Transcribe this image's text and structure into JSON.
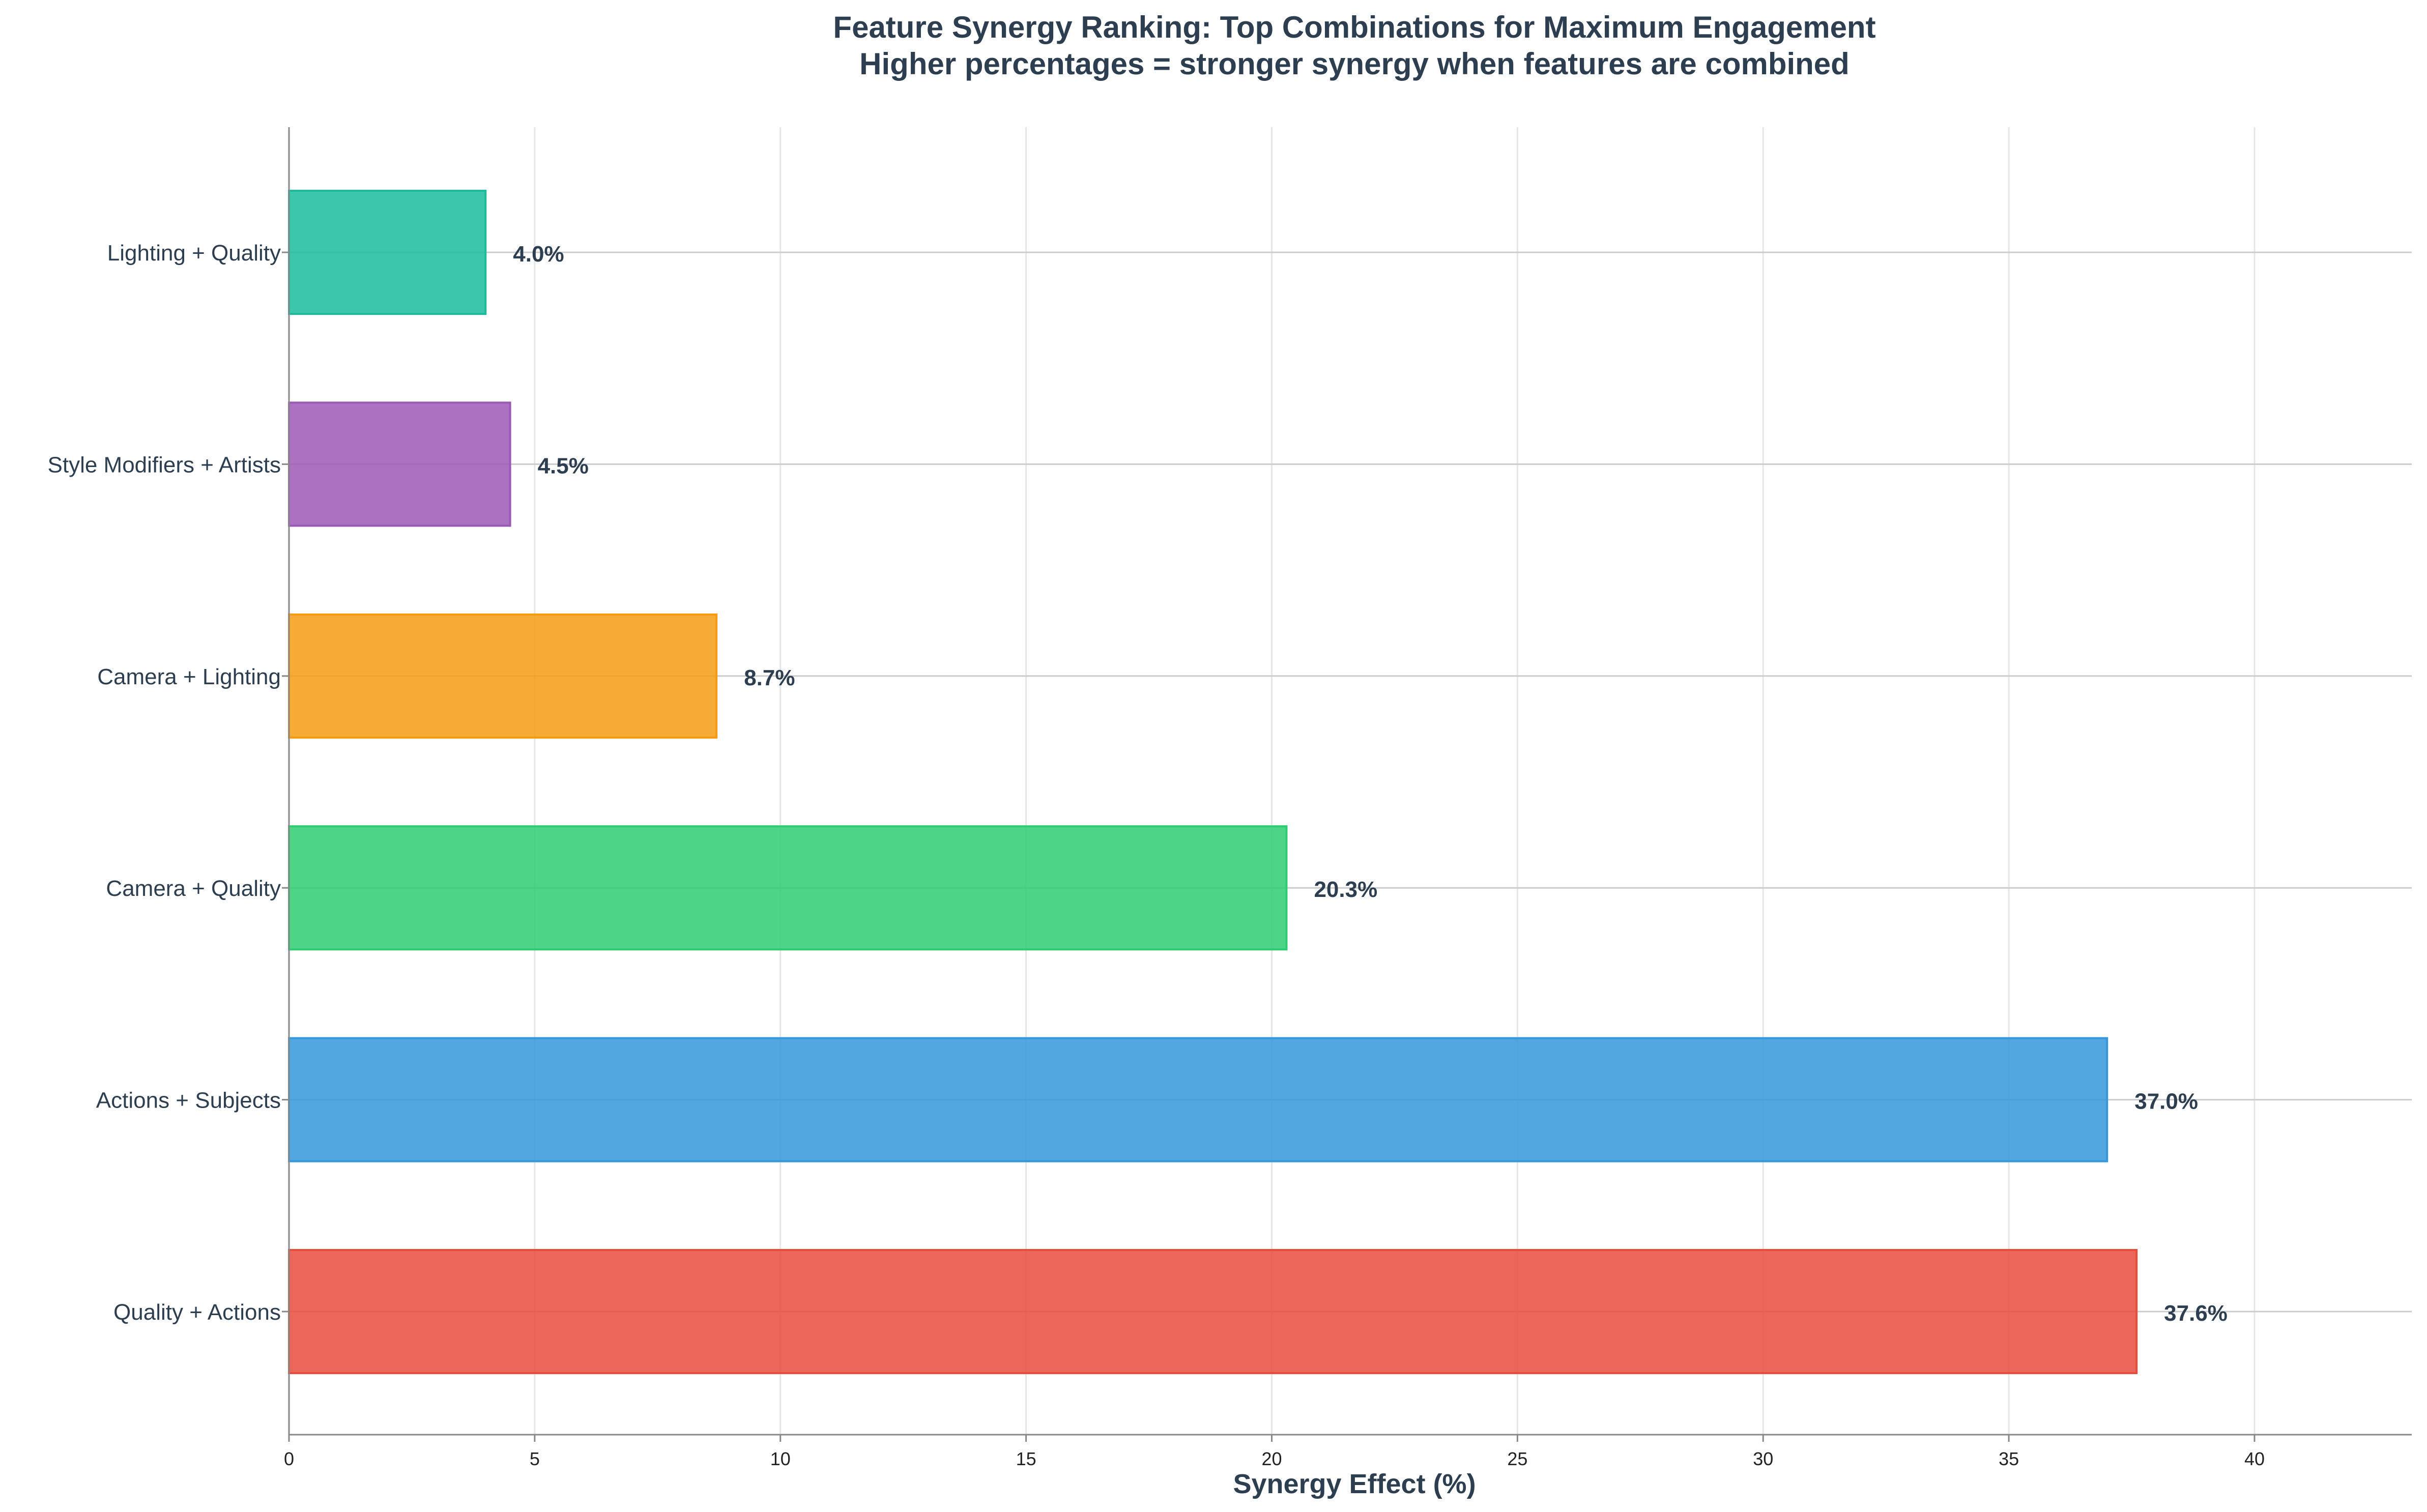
{
  "chart_data": {
    "type": "bar",
    "orientation": "horizontal",
    "title": "Feature Synergy Ranking: Top Combinations for Maximum Engagement",
    "subtitle": "Higher percentages = stronger synergy when features are combined",
    "xlabel": "Synergy Effect (%)",
    "ylabel": "",
    "xlim": [
      0,
      43.2
    ],
    "xticks": [
      0,
      5,
      10,
      15,
      20,
      25,
      30,
      35,
      40
    ],
    "grid": true,
    "categories": [
      "Quality + Actions",
      "Actions + Subjects",
      "Camera + Quality",
      "Camera + Lighting",
      "Style Modifiers + Artists",
      "Lighting + Quality"
    ],
    "values": [
      37.6,
      37.0,
      20.3,
      8.7,
      4.5,
      4.0
    ],
    "value_labels": [
      "37.6%",
      "37.0%",
      "20.3%",
      "8.7%",
      "4.5%",
      "4.0%"
    ],
    "colors": [
      "#e74c3c",
      "#3498db",
      "#2ecc71",
      "#f39c12",
      "#9b59b6",
      "#1abc9c"
    ]
  }
}
